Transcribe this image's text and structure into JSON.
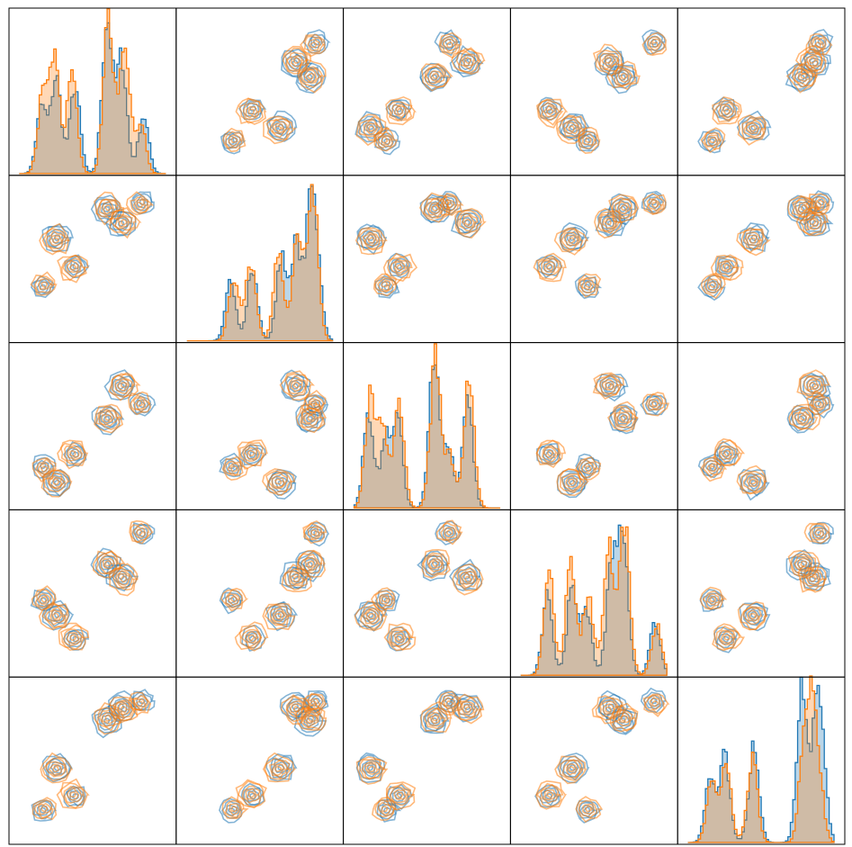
{
  "chart_data": {
    "type": "pair-grid",
    "dimensions": 5,
    "diag_kind": "histogram-step-filled",
    "offdiag_kind": "kde-contour",
    "ticks": "none",
    "legend": "none",
    "colors": {
      "series_a": "#1f77b4",
      "series_b": "#ff7f0e"
    },
    "series": [
      {
        "color_key": "series_a",
        "clusters": [
          {
            "c": [
              0.25,
              0.65,
              0.1,
              0.35,
              0.45
            ],
            "n": 1.0
          },
          {
            "c": [
              0.6,
              0.85,
              0.55,
              0.7,
              0.78
            ],
            "n": 1.6
          },
          {
            "c": [
              0.7,
              0.75,
              0.78,
              0.62,
              0.88
            ],
            "n": 1.2
          },
          {
            "c": [
              0.38,
              0.45,
              0.3,
              0.18,
              0.25
            ],
            "n": 0.9
          },
          {
            "c": [
              0.85,
              0.9,
              0.65,
              0.92,
              0.92
            ],
            "n": 0.6
          },
          {
            "c": [
              0.15,
              0.3,
              0.22,
              0.45,
              0.15
            ],
            "n": 0.7
          }
        ]
      },
      {
        "color_key": "series_b",
        "clusters": [
          {
            "c": [
              0.24,
              0.63,
              0.11,
              0.34,
              0.44
            ],
            "n": 1.1
          },
          {
            "c": [
              0.61,
              0.86,
              0.56,
              0.71,
              0.8
            ],
            "n": 1.5
          },
          {
            "c": [
              0.72,
              0.76,
              0.79,
              0.6,
              0.86
            ],
            "n": 1.3
          },
          {
            "c": [
              0.36,
              0.44,
              0.31,
              0.19,
              0.26
            ],
            "n": 1.0
          },
          {
            "c": [
              0.83,
              0.88,
              0.66,
              0.93,
              0.9
            ],
            "n": 0.5
          },
          {
            "c": [
              0.16,
              0.32,
              0.2,
              0.46,
              0.16
            ],
            "n": 0.8
          }
        ]
      }
    ]
  }
}
